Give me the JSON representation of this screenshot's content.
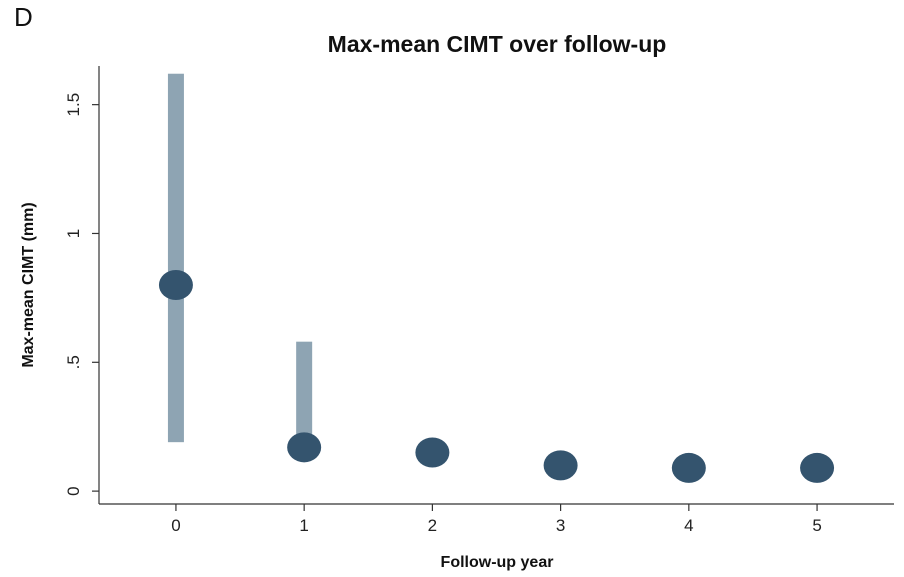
{
  "panel_label": "D",
  "chart_data": {
    "type": "scatter",
    "title": "Max-mean CIMT over follow-up",
    "xlabel": "Follow-up year",
    "ylabel": "Max-mean CIMT (mm)",
    "x_ticks": [
      "0",
      "1",
      "2",
      "3",
      "4",
      "5"
    ],
    "y_ticks": [
      "0",
      ".5",
      "1",
      "1.5"
    ],
    "y_tick_values": [
      0,
      0.5,
      1,
      1.5
    ],
    "xlim": [
      -0.6,
      5.6
    ],
    "ylim": [
      -0.05,
      1.65
    ],
    "grid": false,
    "points": [
      {
        "x": 0,
        "y": 0.8,
        "low": 0.19,
        "high": 1.62
      },
      {
        "x": 1,
        "y": 0.17,
        "low": 0.17,
        "high": 0.58
      },
      {
        "x": 2,
        "y": 0.15
      },
      {
        "x": 3,
        "y": 0.1
      },
      {
        "x": 4,
        "y": 0.09
      },
      {
        "x": 5,
        "y": 0.09
      }
    ],
    "colors": {
      "marker": "#34546e",
      "range_bar": "#8ea4b3"
    }
  }
}
